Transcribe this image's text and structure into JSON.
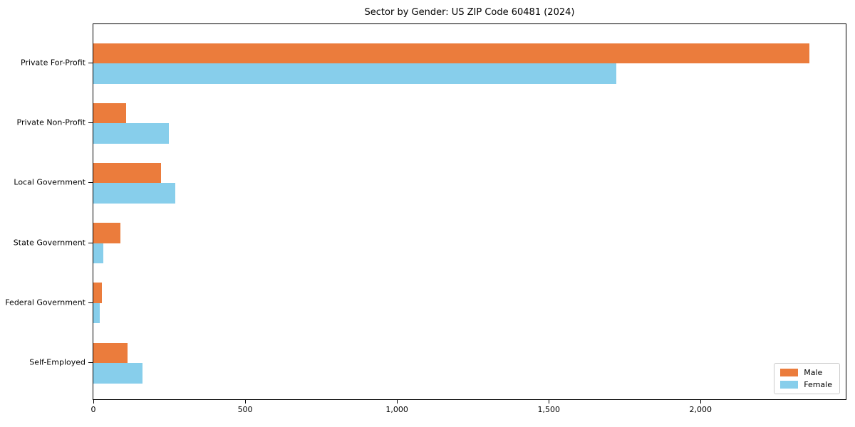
{
  "figure": {
    "title": "Sector by Gender: US ZIP Code 60481 (2024)"
  },
  "chart_data": {
    "type": "bar",
    "orientation": "horizontal",
    "title": "Sector by Gender: US ZIP Code 60481 (2024)",
    "categories": [
      "Private For-Profit",
      "Private Non-Profit",
      "Local Government",
      "State Government",
      "Federal Government",
      "Self-Employed"
    ],
    "series": [
      {
        "name": "Male",
        "color": "#eb7c3c",
        "values": [
          2358,
          108,
          222,
          89,
          29,
          113
        ]
      },
      {
        "name": "Female",
        "color": "#87ceeb",
        "values": [
          1722,
          248,
          270,
          34,
          20,
          163
        ]
      }
    ],
    "xlabel": "",
    "ylabel": "",
    "xlim": [
      0,
      2478
    ],
    "xticks": [
      0,
      500,
      1000,
      1500,
      2000
    ],
    "xtick_labels": [
      "0",
      "500",
      "1,000",
      "1,500",
      "2,000"
    ],
    "legend": {
      "position": "lower right",
      "labels": [
        "Male",
        "Female"
      ]
    },
    "grid": false,
    "background_color": "#ffffff",
    "spine_color": "#000000"
  }
}
